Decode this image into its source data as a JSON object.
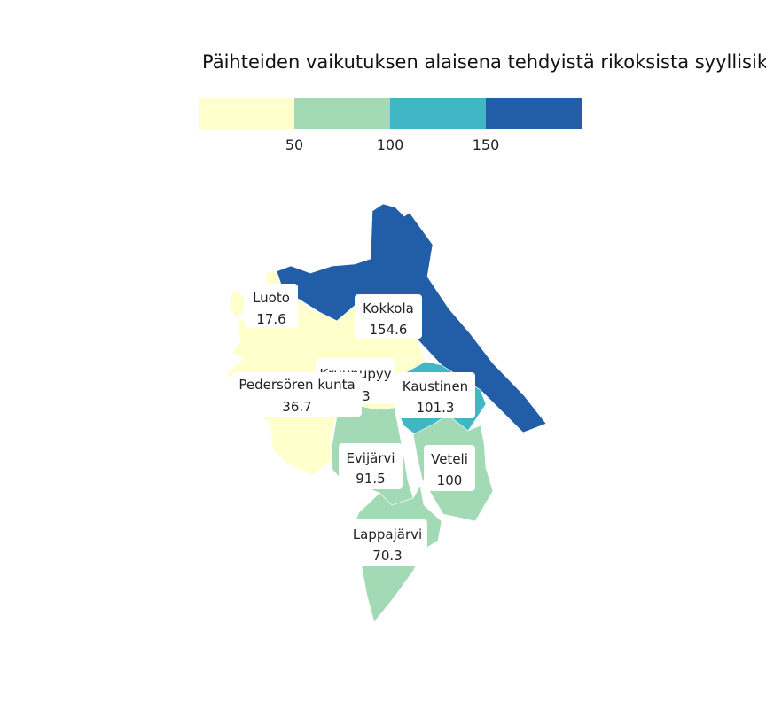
{
  "title": "Päihteiden vaikutuksen alaisena tehdyistä rikoksista syyllisiksi",
  "legend": {
    "bins": [
      {
        "color": "#ffffcc"
      },
      {
        "color": "#a1dab4"
      },
      {
        "color": "#41b6c4"
      },
      {
        "color": "#225ea8"
      }
    ],
    "ticks": [
      "50",
      "100",
      "150"
    ]
  },
  "regions": [
    {
      "name": "Kokkola",
      "value": "154.6",
      "color": "#225ea8"
    },
    {
      "name": "Luoto",
      "value": "17.6",
      "color": "#ffffcc"
    },
    {
      "name": "Pedersören kunta",
      "value": "36.7",
      "color": "#ffffcc"
    },
    {
      "name": "Kruunupyy",
      "value": "18.3",
      "color": "#ffffcc"
    },
    {
      "name": "Kaustinen",
      "value": "101.3",
      "color": "#41b6c4"
    },
    {
      "name": "Evijärvi",
      "value": "91.5",
      "color": "#a1dab4"
    },
    {
      "name": "Veteli",
      "value": "100",
      "color": "#a1dab4"
    },
    {
      "name": "Lappajärvi",
      "value": "70.3",
      "color": "#a1dab4"
    }
  ]
}
